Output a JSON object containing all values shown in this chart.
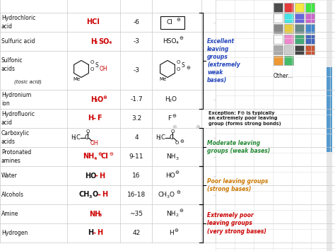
{
  "grid_color": "#c8c8c8",
  "grid_color2": "#e0e0e0",
  "rows": [
    {
      "label": "Hydrochloric\nacid",
      "pka": "-6",
      "conj_box": true
    },
    {
      "label": "Sulfuric acid",
      "pka": "-3",
      "conj_box": false
    },
    {
      "label": "Sulfonic\nacids",
      "pka": "-3",
      "conj_box": false,
      "tall": true
    },
    {
      "label": "Hydronium\nion",
      "pka": "-1.7",
      "conj_box": false
    },
    {
      "label": "Hydrofluoric\nacid",
      "pka": "3.2",
      "conj_box": false
    },
    {
      "label": "Carboxylic\nacids",
      "pka": "4",
      "conj_box": false
    },
    {
      "label": "Protonated\namines",
      "pka": "9-11",
      "conj_box": false
    },
    {
      "label": "Water",
      "pka": "16",
      "conj_box": false
    },
    {
      "label": "Alcohols",
      "pka": "16-18",
      "conj_box": false
    },
    {
      "label": "Amine",
      "pka": "~35",
      "conj_box": false
    },
    {
      "label": "Hydrogen",
      "pka": "42",
      "conj_box": false
    }
  ],
  "swatch_rows": [
    [
      "#4d4d4d",
      "#e63b3b",
      "#f5e642",
      "#42e642"
    ],
    [
      "#ffffff",
      "#42e6e6",
      "#6666dd",
      "#cc66cc"
    ],
    [
      "#888888",
      "#e6cc42",
      "#668888",
      "#4488cc"
    ],
    [
      "#ffffff",
      "#ee88cc",
      "#44aa77",
      "#4466bb"
    ],
    [
      "#aaaaaa",
      "#cccccc",
      "#444444",
      "#cc5533"
    ],
    [
      "#ee9933",
      "#44bb66"
    ]
  ],
  "excellent_text": "Excellent\nleaving\ngroups\n(extremely\nweak\nbases)",
  "excellent_color": "#2244bb",
  "exception_text": "Exception: F⊖ is typically\nan extremely poor leaving\ngroup (forms strong bonds)",
  "exception_color": "#222222",
  "moderate_text": "Moderate leaving\ngroups (weak bases)",
  "moderate_color": "#228833",
  "poor_text": "Poor leaving groups\n(strong bases)",
  "poor_color": "#cc7700",
  "xpoor_text": "Extremely poor\nleaving groups\n(very strong bases)",
  "xpoor_color": "#cc0000",
  "red": "#cc0000",
  "black": "#111111",
  "scrollbar_color": "#5599cc"
}
